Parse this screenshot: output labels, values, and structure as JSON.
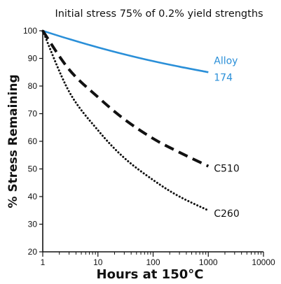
{
  "chart_data": {
    "type": "line",
    "title": "Initial stress 75% of 0.2% yield strengths",
    "xlabel": "Hours at 150°C",
    "ylabel": "% Stress Remaining",
    "xscale": "log",
    "xlim": [
      1,
      10000
    ],
    "ylim": [
      20,
      100
    ],
    "xticks": [
      1,
      10,
      100,
      1000,
      10000
    ],
    "xtick_labels": [
      "1",
      "10",
      "100",
      "1000",
      "10000"
    ],
    "yticks": [
      20,
      30,
      40,
      50,
      60,
      70,
      80,
      90,
      100
    ],
    "ytick_labels": [
      "20",
      "30",
      "40",
      "50",
      "60",
      "70",
      "80",
      "90",
      "100"
    ],
    "grid": false,
    "legend": "none (series labelled at line ends)",
    "series": [
      {
        "name_lines": [
          "Alloy",
          "174"
        ],
        "color": "#2a8fd8",
        "style": "solid",
        "x": [
          1,
          3,
          10,
          30,
          100,
          300,
          1000
        ],
        "y": [
          100,
          97,
          94,
          91.5,
          89,
          87,
          85
        ]
      },
      {
        "name_lines": [
          "C510"
        ],
        "color": "#111111",
        "style": "dashed",
        "x": [
          1,
          3,
          10,
          30,
          100,
          300,
          1000
        ],
        "y": [
          100,
          86,
          76,
          68,
          61,
          56,
          51
        ]
      },
      {
        "name_lines": [
          "C260"
        ],
        "color": "#111111",
        "style": "dotted",
        "x": [
          1,
          3,
          10,
          30,
          100,
          300,
          1000
        ],
        "y": [
          100,
          78,
          64,
          54,
          46,
          40,
          35
        ]
      }
    ]
  }
}
